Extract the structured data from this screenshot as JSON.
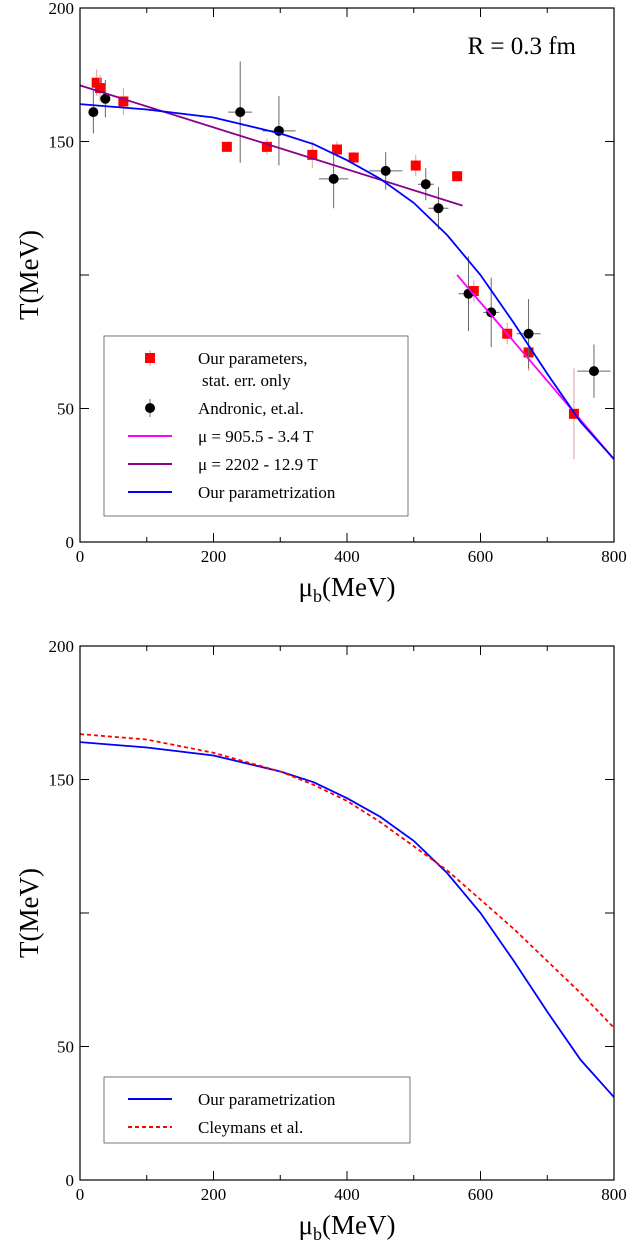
{
  "chart_data": [
    {
      "type": "scatter",
      "xlabel": "μb(MeV)",
      "ylabel": "T(MeV)",
      "xlim": [
        0,
        800
      ],
      "ylim": [
        0,
        200
      ],
      "xticks": [
        "0",
        "200",
        "400",
        "600",
        "800"
      ],
      "yticks": [
        "0",
        "50",
        "150",
        "200"
      ],
      "annotation": "R = 0.3 fm",
      "legend_position": "bottom-left",
      "series": [
        {
          "name": "Our parameters,",
          "name_line2": "stat. err. only",
          "kind": "points",
          "marker": "square",
          "color": "#ff0000",
          "points": [
            {
              "x": 25,
              "y": 172,
              "yerr": 5
            },
            {
              "x": 30,
              "y": 170,
              "yerr": 5
            },
            {
              "x": 65,
              "y": 165,
              "yerr": 5
            },
            {
              "x": 220,
              "y": 148,
              "yerr": 0
            },
            {
              "x": 280,
              "y": 148,
              "yerr": 3
            },
            {
              "x": 348,
              "y": 145,
              "yerr": 5
            },
            {
              "x": 385,
              "y": 147,
              "yerr": 3
            },
            {
              "x": 410,
              "y": 144,
              "yerr": 2
            },
            {
              "x": 503,
              "y": 141,
              "yerr": 4
            },
            {
              "x": 565,
              "y": 137,
              "yerr": 2
            },
            {
              "x": 590,
              "y": 94,
              "yerr": 4
            },
            {
              "x": 640,
              "y": 78,
              "yerr": 4
            },
            {
              "x": 672,
              "y": 71,
              "yerr": 7
            },
            {
              "x": 740,
              "y": 48,
              "yerr": 17
            }
          ]
        },
        {
          "name": "Andronic, et.al.",
          "kind": "points",
          "marker": "circle",
          "color": "#000000",
          "points": [
            {
              "x": 20,
              "y": 161,
              "yerr": 8,
              "xerr": 2
            },
            {
              "x": 38,
              "y": 166,
              "yerr": 7,
              "xerr": 3
            },
            {
              "x": 240,
              "y": 161,
              "yerr": 19,
              "xerr": 18
            },
            {
              "x": 298,
              "y": 154,
              "yerr": 13,
              "xerr": 25
            },
            {
              "x": 380,
              "y": 136,
              "yerr": 11,
              "xerr": 22
            },
            {
              "x": 458,
              "y": 139,
              "yerr": 7,
              "xerr": 25
            },
            {
              "x": 518,
              "y": 134,
              "yerr": 6,
              "xerr": 12
            },
            {
              "x": 537,
              "y": 125,
              "yerr": 8,
              "xerr": 15
            },
            {
              "x": 582,
              "y": 93,
              "yerr": 14,
              "xerr": 15
            },
            {
              "x": 616,
              "y": 86,
              "yerr": 13,
              "xerr": 12
            },
            {
              "x": 672,
              "y": 78,
              "yerr": 13,
              "xerr": 18
            },
            {
              "x": 770,
              "y": 64,
              "yerr": 10,
              "xerr": 25
            }
          ]
        },
        {
          "name": "μ = 905.5 - 3.4 T",
          "kind": "line",
          "color": "#ff00ff",
          "x": [
            565,
            800
          ],
          "y": [
            100,
            31
          ]
        },
        {
          "name": "μ = 2202 - 12.9 T",
          "kind": "line",
          "color": "#8b008b",
          "x": [
            0,
            573
          ],
          "y": [
            171,
            126
          ]
        },
        {
          "name": "Our parametrization",
          "kind": "line",
          "color": "#0000ff",
          "x": [
            0,
            100,
            200,
            300,
            350,
            400,
            450,
            500,
            550,
            600,
            650,
            700,
            750,
            800
          ],
          "y": [
            164,
            162,
            159,
            153,
            149,
            143,
            136,
            127,
            115,
            100,
            82,
            63,
            45,
            31
          ]
        }
      ]
    },
    {
      "type": "line",
      "xlabel": "μb(MeV)",
      "ylabel": "T(MeV)",
      "xlim": [
        0,
        800
      ],
      "ylim": [
        0,
        200
      ],
      "xticks": [
        "0",
        "200",
        "400",
        "600",
        "800"
      ],
      "yticks": [
        "0",
        "50",
        "150",
        "200"
      ],
      "legend_position": "bottom-left",
      "series": [
        {
          "name": "Our parametrization",
          "style": "solid",
          "color": "#0000ff",
          "x": [
            0,
            100,
            200,
            300,
            350,
            400,
            450,
            500,
            550,
            600,
            650,
            700,
            750,
            800
          ],
          "y": [
            164,
            162,
            159,
            153,
            149,
            143,
            136,
            127,
            115,
            100,
            82,
            63,
            45,
            31
          ]
        },
        {
          "name": "Cleymans et al.",
          "style": "dashed",
          "color": "#ff0000",
          "x": [
            0,
            100,
            200,
            300,
            350,
            400,
            450,
            500,
            550,
            600,
            650,
            700,
            750,
            800
          ],
          "y": [
            167,
            165,
            160,
            153,
            148,
            142,
            134,
            125,
            116,
            105,
            94,
            82,
            70,
            57
          ]
        }
      ]
    }
  ]
}
